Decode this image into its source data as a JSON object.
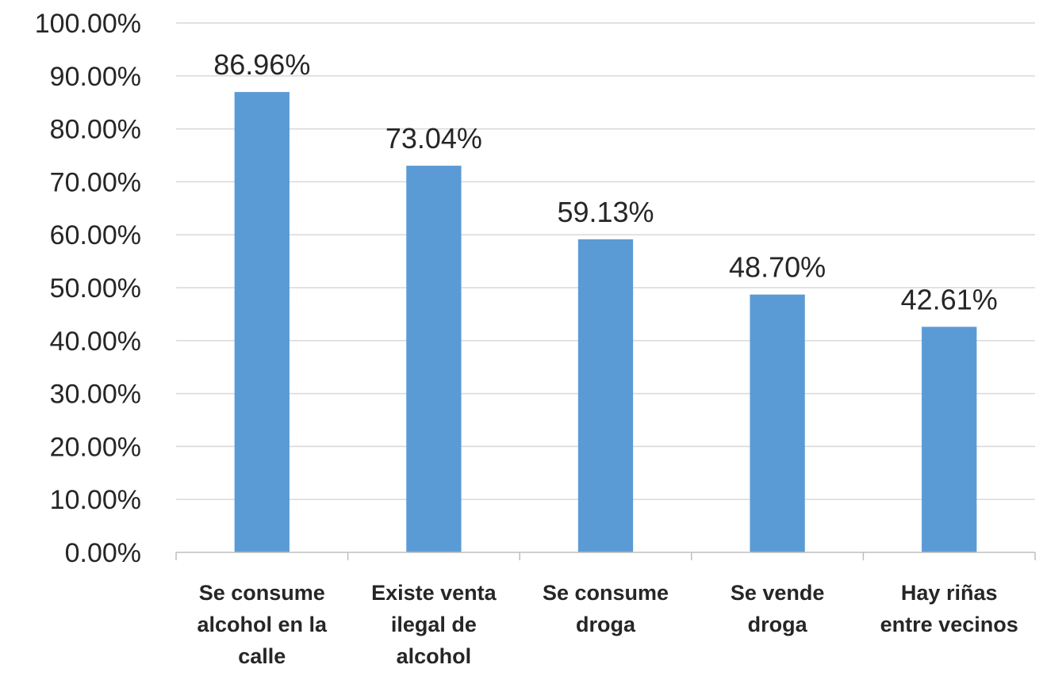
{
  "chart_data": {
    "type": "bar",
    "categories": [
      [
        "Se consume",
        "alcohol en la",
        "calle"
      ],
      [
        "Existe venta",
        "ilegal de",
        "alcohol"
      ],
      [
        "Se consume",
        "droga"
      ],
      [
        "Se vende",
        "droga"
      ],
      [
        "Hay riñas",
        "entre vecinos"
      ]
    ],
    "values": [
      86.96,
      73.04,
      59.13,
      48.7,
      42.61
    ],
    "value_labels": [
      "86.96%",
      "73.04%",
      "59.13%",
      "48.70%",
      "42.61%"
    ],
    "ylim": [
      0,
      100
    ],
    "y_ticks": [
      0,
      10,
      20,
      30,
      40,
      50,
      60,
      70,
      80,
      90,
      100
    ],
    "y_tick_labels": [
      "0.00%",
      "10.00%",
      "20.00%",
      "30.00%",
      "40.00%",
      "50.00%",
      "60.00%",
      "70.00%",
      "80.00%",
      "90.00%",
      "100.00%"
    ],
    "grid": true,
    "bar_color": "#5b9bd5"
  }
}
